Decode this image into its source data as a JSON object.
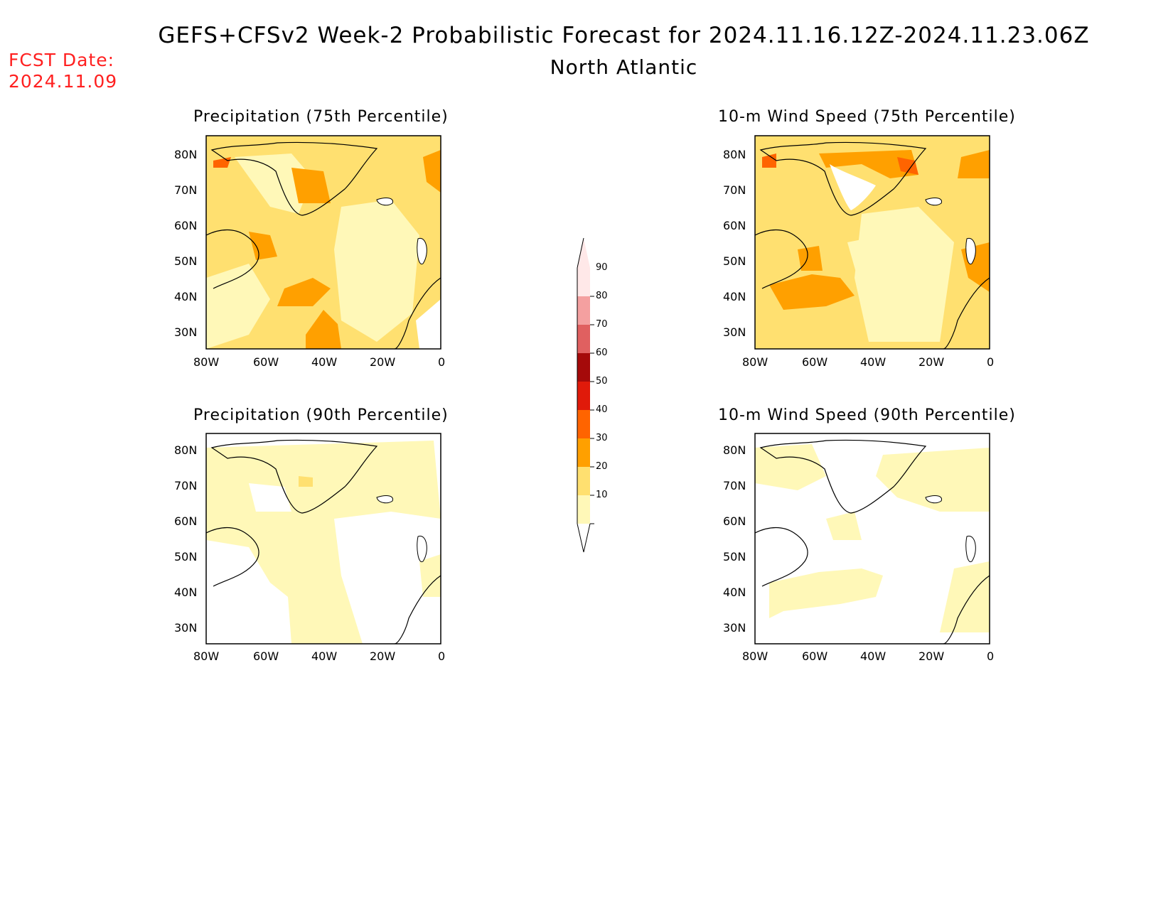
{
  "header": {
    "title": "GEFS+CFSv2 Week-2 Probabilistic Forecast for 2024.11.16.12Z-2024.11.23.06Z",
    "region": "North Atlantic",
    "fcst_label": "FCST Date:",
    "fcst_date": "2024.11.09"
  },
  "axes": {
    "lat_labels": [
      "80N",
      "70N",
      "60N",
      "50N",
      "40N",
      "30N"
    ],
    "lon_labels": [
      "80W",
      "60W",
      "40W",
      "20W",
      "0"
    ]
  },
  "panels": [
    {
      "id": "precip75",
      "title": "Precipitation (75th Percentile)",
      "intensity": "high"
    },
    {
      "id": "wind75",
      "title": "10-m Wind Speed (75th Percentile)",
      "intensity": "high"
    },
    {
      "id": "precip90",
      "title": "Precipitation (90th Percentile)",
      "intensity": "low"
    },
    {
      "id": "wind90",
      "title": "10-m Wind Speed (90th Percentile)",
      "intensity": "low"
    }
  ],
  "colorbar": {
    "levels": [
      "90",
      "80",
      "70",
      "60",
      "50",
      "40",
      "30",
      "20",
      "10"
    ],
    "colors": [
      "#ffe8e8",
      "#f4a0a0",
      "#e06060",
      "#a50a0a",
      "#e01a0a",
      "#ff6400",
      "#ffa000",
      "#ffe070",
      "#fff8b8"
    ]
  }
}
